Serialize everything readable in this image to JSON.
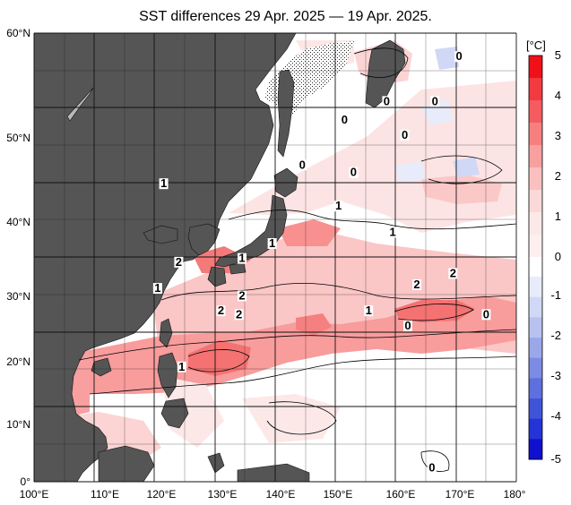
{
  "title": "SST differences 29 Apr. 2025 — 19 Apr. 2025.",
  "unit": "[°C]",
  "lat_labels": [
    "60°N",
    "50°N",
    "40°N",
    "30°N",
    "20°N",
    "10°N",
    "0°"
  ],
  "lon_labels": [
    "100°E",
    "110°E",
    "120°E",
    "130°E",
    "140°E",
    "150°E",
    "160°E",
    "170°E",
    "180°"
  ],
  "colorbar": {
    "ticks": [
      "5",
      "4",
      "3",
      "2",
      "1",
      "0",
      "-1",
      "-2",
      "-3",
      "-4",
      "-5"
    ],
    "warm_colors": [
      "#f0101a",
      "#f23a40",
      "#f45c60",
      "#f67f80",
      "#f8a0a0",
      "#fac0c0",
      "#fcd8d8",
      "#fde8e8",
      "#feefef"
    ],
    "cool_colors": [
      "#e8ecfa",
      "#d0d8f6",
      "#b8c2f0",
      "#9aa8ea",
      "#7c8ce4",
      "#5e70de",
      "#4054d8",
      "#2434d6",
      "#1010d0"
    ]
  },
  "contour_labels": [
    {
      "text": "0",
      "lon": 170.5,
      "lat": 56.5
    },
    {
      "text": "0",
      "lon": 158.5,
      "lat": 50.5
    },
    {
      "text": "0",
      "lon": 166.5,
      "lat": 50.5
    },
    {
      "text": "0",
      "lon": 161.5,
      "lat": 46.0
    },
    {
      "text": "0",
      "lon": 151.5,
      "lat": 48.0
    },
    {
      "text": "0",
      "lon": 144.5,
      "lat": 42.0
    },
    {
      "text": "0",
      "lon": 153.0,
      "lat": 41.0
    },
    {
      "text": "1",
      "lon": 121.5,
      "lat": 39.5
    },
    {
      "text": "1",
      "lon": 150.5,
      "lat": 36.5
    },
    {
      "text": "1",
      "lon": 159.5,
      "lat": 33.0
    },
    {
      "text": "1",
      "lon": 139.5,
      "lat": 31.5
    },
    {
      "text": "1",
      "lon": 134.5,
      "lat": 29.5
    },
    {
      "text": "2",
      "lon": 124.0,
      "lat": 29.0
    },
    {
      "text": "1",
      "lon": 120.5,
      "lat": 25.5
    },
    {
      "text": "2",
      "lon": 134.5,
      "lat": 24.5
    },
    {
      "text": "2",
      "lon": 131.0,
      "lat": 22.5
    },
    {
      "text": "2",
      "lon": 134.0,
      "lat": 22.0
    },
    {
      "text": "2",
      "lon": 163.5,
      "lat": 26.0
    },
    {
      "text": "2",
      "lon": 169.5,
      "lat": 27.5
    },
    {
      "text": "1",
      "lon": 155.5,
      "lat": 22.5
    },
    {
      "text": "0",
      "lon": 162.0,
      "lat": 20.5
    },
    {
      "text": "0",
      "lon": 175.0,
      "lat": 22.0
    },
    {
      "text": "1",
      "lon": 124.5,
      "lat": 15.0
    },
    {
      "text": "0",
      "lon": 166.0,
      "lat": 1.5
    }
  ]
}
